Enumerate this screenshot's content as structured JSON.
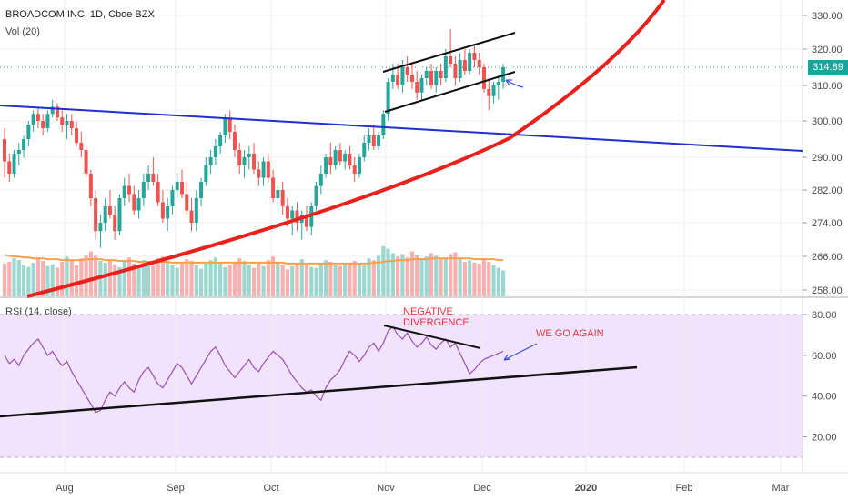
{
  "header": {
    "symbol": "BROADCOM INC, 1D, Cboe BZX",
    "volume": "Vol (20)",
    "rsi": "RSI (14, close)"
  },
  "last_price": "314.89",
  "annotations": {
    "negative": "NEGATIVE",
    "divergence": "DIVERGENCE",
    "go_again": "WE GO AGAIN"
  },
  "colors": {
    "up": "#26a69a",
    "down": "#ef5350",
    "vol_up": "#26a69a",
    "vol_down": "#ef5350",
    "vol_ma": "#f7a04a",
    "rsi_line": "#9c4fb3",
    "rsi_band": "#f1e3fb",
    "curve": "#e8211c",
    "trend_blue": "#1f2fd1",
    "trend_black": "#111111",
    "last_price": "#16a69a"
  },
  "chart_data": [
    {
      "type": "candlestick",
      "title": "BROADCOM INC, 1D, Cboe BZX",
      "y_ticks": [
        "330.00",
        "320.00",
        "310.00",
        "300.00",
        "290.00",
        "282.00",
        "274.00",
        "266.00",
        "258.00"
      ],
      "x_ticks": [
        "Aug",
        "Sep",
        "Oct",
        "Nov",
        "Dec",
        "2020",
        "Feb",
        "Mar"
      ],
      "last_price": 314.89,
      "candles": [
        [
          295,
          298,
          285,
          289
        ],
        [
          289,
          291,
          284,
          286
        ],
        [
          286,
          292,
          285,
          291
        ],
        [
          291,
          294,
          288,
          292
        ],
        [
          292,
          296,
          290,
          295
        ],
        [
          295,
          300,
          293,
          299
        ],
        [
          299,
          303,
          297,
          302
        ],
        [
          302,
          304,
          298,
          300
        ],
        [
          300,
          302,
          296,
          298
        ],
        [
          298,
          303,
          297,
          302
        ],
        [
          302,
          306,
          301,
          304
        ],
        [
          304,
          305,
          300,
          301
        ],
        [
          301,
          303,
          297,
          299
        ],
        [
          299,
          302,
          295,
          300
        ],
        [
          300,
          302,
          296,
          298
        ],
        [
          298,
          300,
          293,
          294
        ],
        [
          294,
          297,
          290,
          292
        ],
        [
          292,
          293,
          285,
          286
        ],
        [
          286,
          287,
          278,
          280
        ],
        [
          280,
          282,
          270,
          272
        ],
        [
          272,
          276,
          268,
          274
        ],
        [
          274,
          280,
          272,
          278
        ],
        [
          278,
          282,
          275,
          276
        ],
        [
          276,
          278,
          270,
          272
        ],
        [
          272,
          281,
          271,
          280
        ],
        [
          280,
          285,
          278,
          283
        ],
        [
          283,
          286,
          279,
          281
        ],
        [
          281,
          283,
          276,
          277
        ],
        [
          277,
          282,
          275,
          280
        ],
        [
          280,
          286,
          278,
          284
        ],
        [
          284,
          288,
          282,
          286
        ],
        [
          286,
          290,
          283,
          284
        ],
        [
          284,
          286,
          278,
          279
        ],
        [
          279,
          282,
          274,
          275
        ],
        [
          275,
          280,
          272,
          278
        ],
        [
          278,
          283,
          276,
          282
        ],
        [
          282,
          286,
          280,
          284
        ],
        [
          284,
          287,
          280,
          281
        ],
        [
          281,
          284,
          276,
          277
        ],
        [
          277,
          280,
          272,
          274
        ],
        [
          274,
          282,
          272,
          280
        ],
        [
          280,
          285,
          278,
          284
        ],
        [
          284,
          290,
          283,
          288
        ],
        [
          288,
          292,
          286,
          290
        ],
        [
          290,
          295,
          288,
          293
        ],
        [
          293,
          297,
          291,
          296
        ],
        [
          296,
          302,
          294,
          301
        ],
        [
          301,
          303,
          295,
          297
        ],
        [
          297,
          299,
          290,
          292
        ],
        [
          292,
          294,
          286,
          288
        ],
        [
          288,
          292,
          285,
          290
        ],
        [
          290,
          293,
          287,
          291
        ],
        [
          291,
          294,
          286,
          287
        ],
        [
          287,
          289,
          283,
          285
        ],
        [
          285,
          290,
          283,
          289
        ],
        [
          289,
          291,
          284,
          285
        ],
        [
          285,
          287,
          279,
          280
        ],
        [
          280,
          283,
          277,
          282
        ],
        [
          282,
          284,
          276,
          278
        ],
        [
          278,
          280,
          273,
          275
        ],
        [
          275,
          278,
          271,
          277
        ],
        [
          277,
          279,
          272,
          274
        ],
        [
          274,
          277,
          270,
          276
        ],
        [
          276,
          278,
          272,
          273
        ],
        [
          273,
          279,
          271,
          278
        ],
        [
          278,
          284,
          277,
          283
        ],
        [
          283,
          288,
          281,
          286
        ],
        [
          286,
          291,
          285,
          290
        ],
        [
          290,
          294,
          286,
          288
        ],
        [
          288,
          293,
          287,
          292
        ],
        [
          292,
          294,
          288,
          289
        ],
        [
          289,
          292,
          287,
          291
        ],
        [
          291,
          293,
          287,
          288
        ],
        [
          288,
          290,
          284,
          286
        ],
        [
          286,
          291,
          285,
          290
        ],
        [
          290,
          296,
          289,
          294
        ],
        [
          294,
          298,
          292,
          296
        ],
        [
          296,
          299,
          292,
          293
        ],
        [
          293,
          297,
          292,
          296
        ],
        [
          296,
          303,
          295,
          302
        ],
        [
          302,
          312,
          300,
          311
        ],
        [
          311,
          316,
          309,
          313
        ],
        [
          313,
          316,
          309,
          310
        ],
        [
          310,
          317,
          308,
          315
        ],
        [
          315,
          318,
          311,
          313
        ],
        [
          313,
          316,
          309,
          311
        ],
        [
          311,
          314,
          306,
          308
        ],
        [
          308,
          313,
          306,
          312
        ],
        [
          312,
          315,
          310,
          314
        ],
        [
          314,
          316,
          309,
          310
        ],
        [
          310,
          315,
          308,
          314
        ],
        [
          314,
          316,
          310,
          312
        ],
        [
          312,
          320,
          311,
          318
        ],
        [
          318,
          326,
          315,
          316
        ],
        [
          316,
          318,
          310,
          312
        ],
        [
          312,
          319,
          311,
          317
        ],
        [
          317,
          320,
          313,
          314
        ],
        [
          314,
          320,
          313,
          319
        ],
        [
          319,
          321,
          315,
          317
        ],
        [
          317,
          319,
          313,
          315
        ],
        [
          315,
          316,
          308,
          309
        ],
        [
          309,
          312,
          303,
          307
        ],
        [
          307,
          311,
          305,
          310
        ],
        [
          310,
          313,
          306,
          311
        ],
        [
          311,
          316,
          309,
          315
        ]
      ],
      "volume": [
        38,
        40,
        44,
        42,
        36,
        34,
        39,
        45,
        41,
        35,
        37,
        33,
        40,
        46,
        42,
        36,
        44,
        48,
        52,
        47,
        41,
        39,
        43,
        37,
        34,
        40,
        45,
        38,
        36,
        42,
        39,
        35,
        44,
        46,
        40,
        37,
        33,
        38,
        43,
        41,
        36,
        32,
        38,
        42,
        45,
        40,
        34,
        36,
        39,
        44,
        41,
        37,
        33,
        38,
        35,
        42,
        46,
        40,
        36,
        31,
        35,
        39,
        43,
        37,
        34,
        33,
        38,
        42,
        40,
        36,
        35,
        37,
        39,
        41,
        38,
        36,
        44,
        42,
        47,
        58,
        55,
        50,
        46,
        49,
        45,
        52,
        48,
        44,
        46,
        50,
        47,
        43,
        45,
        49,
        51,
        44,
        40,
        42,
        39,
        38,
        44,
        40,
        36,
        33,
        30
      ],
      "volume_ma": [
        48,
        47,
        46,
        46,
        45,
        45,
        44,
        44,
        44,
        43,
        43,
        43,
        42,
        42,
        42,
        42,
        42,
        43,
        43,
        43,
        43,
        42,
        42,
        42,
        41,
        41,
        41,
        41,
        40,
        40,
        40,
        40,
        40,
        40,
        40,
        39,
        39,
        39,
        39,
        39,
        39,
        39,
        39,
        39,
        39,
        39,
        39,
        39,
        39,
        39,
        39,
        39,
        39,
        39,
        39,
        39,
        39,
        39,
        39,
        38,
        38,
        38,
        38,
        38,
        38,
        38,
        38,
        38,
        38,
        38,
        38,
        38,
        38,
        38,
        38,
        38,
        38,
        39,
        39,
        40,
        41,
        41,
        42,
        42,
        42,
        43,
        43,
        43,
        43,
        44,
        44,
        44,
        44,
        44,
        44,
        44,
        44,
        44,
        43,
        43,
        43,
        43,
        43,
        42,
        42
      ]
    },
    {
      "type": "line",
      "title": "RSI (14, close)",
      "y_ticks": [
        "80.00",
        "60.00",
        "40.00",
        "20.00"
      ],
      "ylim": [
        0,
        100
      ],
      "values": [
        60,
        56,
        58,
        55,
        60,
        63,
        66,
        68,
        64,
        60,
        62,
        58,
        55,
        57,
        52,
        48,
        44,
        40,
        36,
        32,
        33,
        38,
        42,
        40,
        44,
        47,
        44,
        42,
        48,
        52,
        54,
        50,
        46,
        44,
        48,
        52,
        56,
        54,
        50,
        46,
        50,
        54,
        58,
        62,
        64,
        60,
        55,
        52,
        49,
        52,
        55,
        58,
        54,
        52,
        56,
        59,
        62,
        60,
        58,
        54,
        50,
        47,
        44,
        42,
        43,
        40,
        38,
        44,
        48,
        50,
        53,
        58,
        62,
        60,
        57,
        60,
        64,
        66,
        62,
        66,
        72,
        74,
        70,
        68,
        71,
        67,
        64,
        66,
        69,
        65,
        63,
        66,
        68,
        64,
        66,
        61,
        56,
        51,
        53,
        56,
        58,
        59,
        60,
        61,
        62
      ]
    }
  ]
}
